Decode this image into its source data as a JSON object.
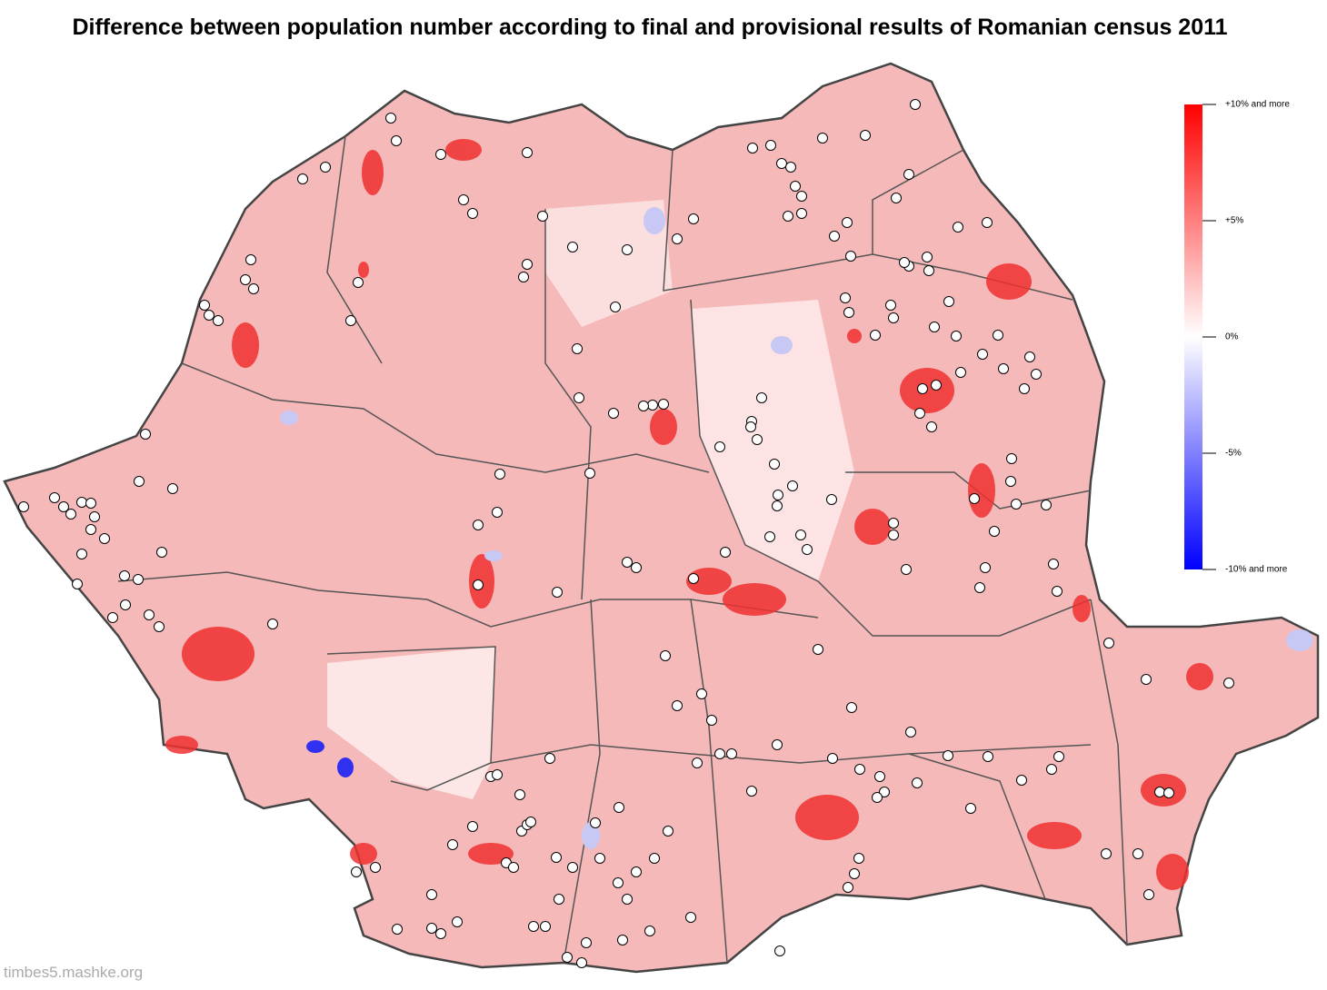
{
  "title": "Difference between population number according to final and provisional results of Romanian census 2011",
  "legend": {
    "range": [
      -10,
      10
    ],
    "ticks": [
      {
        "value": 10,
        "label": "+10% and more"
      },
      {
        "value": 5,
        "label": "+5%"
      },
      {
        "value": 0,
        "label": "0%"
      },
      {
        "value": -5,
        "label": "-5%"
      },
      {
        "value": -10,
        "label": "-10% and more"
      }
    ]
  },
  "watermark": "timbes5.mashke.org"
}
